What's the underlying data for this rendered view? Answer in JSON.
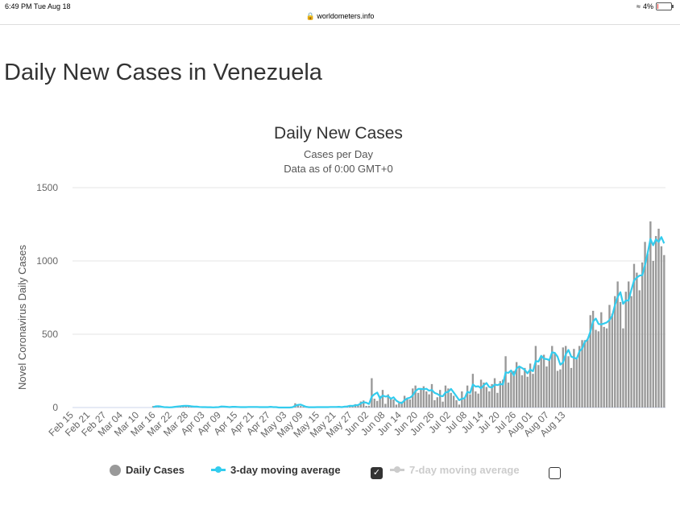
{
  "status_bar": {
    "time": "6:49 PM  Tue Aug 18",
    "url": "worldometers.info",
    "battery": "4%"
  },
  "page": {
    "title": "Daily New Cases in Venezuela"
  },
  "legend": {
    "daily_cases": "Daily Cases",
    "avg3": "3-day moving average",
    "avg7": "7-day moving average",
    "avg3_checked": true,
    "avg7_checked": false
  },
  "colors": {
    "bar": "#999999",
    "avg3": "#33ccee",
    "avg7": "#cccccc",
    "grid": "#e6e6e6"
  },
  "chart_data": {
    "type": "bar",
    "title": "Daily New Cases",
    "subtitle_1": "Cases per Day",
    "subtitle_2": "Data as of 0:00 GMT+0",
    "ylabel": "Novel Coronavirus Daily Cases",
    "xlabel": "",
    "ylim": [
      0,
      1500
    ],
    "yticks": [
      0,
      500,
      1000,
      1500
    ],
    "start_date": "2020-02-15",
    "xtick_labels": [
      "Feb 15",
      "Feb 21",
      "Feb 27",
      "Mar 04",
      "Mar 10",
      "Mar 16",
      "Mar 22",
      "Mar 28",
      "Apr 03",
      "Apr 09",
      "Apr 15",
      "Apr 21",
      "Apr 27",
      "May 03",
      "May 09",
      "May 15",
      "May 21",
      "May 27",
      "Jun 02",
      "Jun 08",
      "Jun 14",
      "Jun 20",
      "Jun 26",
      "Jul 02",
      "Jul 08",
      "Jul 14",
      "Jul 20",
      "Jul 26",
      "Aug 01",
      "Aug 07",
      "Aug 13"
    ],
    "tick_every_days": 6,
    "series": [
      {
        "name": "Daily Cases",
        "type": "bar",
        "values": [
          0,
          0,
          0,
          0,
          0,
          0,
          0,
          0,
          0,
          0,
          0,
          0,
          0,
          0,
          0,
          0,
          0,
          0,
          0,
          0,
          0,
          0,
          0,
          0,
          0,
          0,
          0,
          0,
          0,
          10,
          13,
          3,
          3,
          3,
          0,
          0,
          6,
          9,
          7,
          12,
          14,
          11,
          8,
          5,
          6,
          6,
          0,
          4,
          2,
          2,
          2,
          0,
          5,
          5,
          11,
          1,
          3,
          5,
          7,
          4,
          0,
          5,
          4,
          1,
          6,
          4,
          2,
          6,
          2,
          2,
          4,
          2,
          8,
          0,
          0,
          0,
          0,
          1,
          0,
          0,
          6,
          29,
          20,
          10,
          5,
          0,
          0,
          5,
          2,
          3,
          4,
          1,
          3,
          5,
          5,
          3,
          3,
          7,
          0,
          10,
          12,
          15,
          7,
          23,
          20,
          41,
          48,
          11,
          12,
          200,
          60,
          45,
          80,
          120,
          25,
          90,
          65,
          55,
          20,
          30,
          40,
          80,
          65,
          55,
          130,
          150,
          100,
          130,
          145,
          110,
          90,
          160,
          50,
          70,
          120,
          40,
          150,
          130,
          100,
          80,
          50,
          20,
          110,
          60,
          150,
          90,
          230,
          110,
          95,
          190,
          170,
          140,
          110,
          160,
          200,
          100,
          180,
          190,
          350,
          170,
          240,
          250,
          310,
          280,
          220,
          270,
          210,
          300,
          230,
          420,
          290,
          350,
          360,
          280,
          330,
          420,
          370,
          250,
          260,
          410,
          420,
          350,
          270,
          400,
          330,
          420,
          460,
          460,
          470,
          630,
          660,
          530,
          520,
          650,
          550,
          540,
          700,
          640,
          760,
          860,
          720,
          540,
          790,
          860,
          760,
          980,
          920,
          800,
          990,
          1130,
          1050,
          1270,
          1000,
          1170,
          1220,
          1100,
          1040
        ]
      },
      {
        "name": "3-day moving average",
        "type": "line",
        "values": [
          0,
          0,
          0,
          0,
          0,
          0,
          0,
          0,
          0,
          0,
          0,
          0,
          0,
          0,
          0,
          0,
          0,
          0,
          0,
          0,
          0,
          0,
          0,
          0,
          0,
          0,
          0,
          0,
          0,
          3,
          8,
          9,
          6,
          3,
          2,
          1,
          2,
          5,
          7,
          9,
          11,
          12,
          11,
          8,
          6,
          6,
          4,
          3,
          3,
          2,
          2,
          1,
          2,
          3,
          7,
          6,
          5,
          3,
          5,
          5,
          4,
          3,
          3,
          3,
          4,
          4,
          4,
          4,
          3,
          3,
          3,
          3,
          5,
          3,
          3,
          0,
          0,
          0,
          0,
          0,
          2,
          12,
          18,
          20,
          12,
          5,
          2,
          2,
          2,
          3,
          3,
          3,
          3,
          3,
          4,
          4,
          4,
          5,
          3,
          6,
          7,
          12,
          11,
          15,
          17,
          28,
          36,
          33,
          24,
          74,
          91,
          102,
          62,
          82,
          75,
          78,
          60,
          70,
          47,
          35,
          30,
          50,
          62,
          67,
          83,
          112,
          127,
          127,
          125,
          128,
          115,
          120,
          100,
          93,
          80,
          77,
          103,
          107,
          127,
          103,
          77,
          50,
          60,
          63,
          107,
          100,
          157,
          143,
          145,
          132,
          152,
          167,
          140,
          137,
          157,
          153,
          160,
          157,
          240,
          237,
          253,
          220,
          267,
          280,
          270,
          257,
          233,
          260,
          247,
          317,
          313,
          353,
          333,
          330,
          323,
          377,
          373,
          347,
          293,
          307,
          363,
          393,
          347,
          340,
          333,
          383,
          403,
          447,
          463,
          517,
          587,
          607,
          570,
          567,
          573,
          580,
          597,
          627,
          700,
          753,
          787,
          707,
          730,
          730,
          803,
          867,
          887,
          900,
          903,
          973,
          1057,
          1150,
          1107,
          1147,
          1130,
          1163,
          1120
        ]
      }
    ]
  }
}
